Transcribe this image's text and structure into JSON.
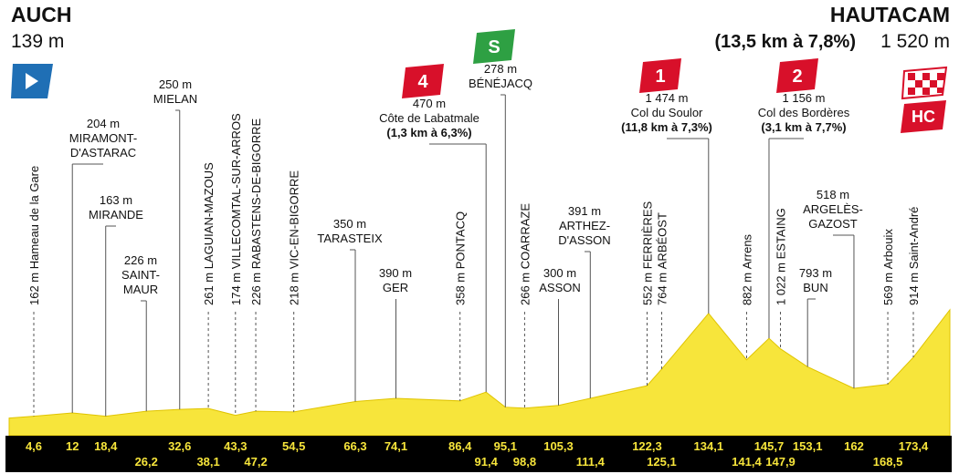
{
  "header": {
    "start": {
      "name": "AUCH",
      "altitude": {
        "value": 139,
        "label": "139 m"
      }
    },
    "finish": {
      "name": "HAUTACAM",
      "climb": "(13,5 km à 7,8%)",
      "altitude": {
        "value": 1520,
        "label": "1 520 m"
      },
      "badge": "HC"
    }
  },
  "waypoints": [
    {
      "orient": "vertical",
      "km": {
        "value": 4.6,
        "label": "4,6"
      },
      "altitude": {
        "value": 162,
        "label": "162 m"
      },
      "name": [
        "Hameau de la Gare"
      ]
    },
    {
      "orient": "horizontal",
      "km": {
        "value": 12,
        "label": "12"
      },
      "altitude": {
        "value": 204,
        "label": "204 m"
      },
      "name": [
        "MIRAMONT-",
        "D'ASTARAC"
      ]
    },
    {
      "orient": "horizontal",
      "km": {
        "value": 18.4,
        "label": "18,4"
      },
      "altitude": {
        "value": 163,
        "label": "163 m"
      },
      "name": [
        "MIRANDE"
      ]
    },
    {
      "orient": "horizontal",
      "km": {
        "value": 26.2,
        "label": "26,2"
      },
      "altitude": {
        "value": 226,
        "label": "226 m"
      },
      "name": [
        "SAINT-",
        "MAUR"
      ]
    },
    {
      "orient": "horizontal",
      "km": {
        "value": 32.6,
        "label": "32,6"
      },
      "altitude": {
        "value": 250,
        "label": "250 m"
      },
      "name": [
        "MIELAN"
      ]
    },
    {
      "orient": "vertical",
      "km": {
        "value": 38.1,
        "label": "38,1"
      },
      "altitude": {
        "value": 261,
        "label": "261 m"
      },
      "name": [
        "LAGUIAN-MAZOUS"
      ]
    },
    {
      "orient": "vertical",
      "km": {
        "value": 43.3,
        "label": "43,3"
      },
      "altitude": {
        "value": 174,
        "label": "174 m"
      },
      "name": [
        "VILLECOMTAL-SUR-ARROS"
      ]
    },
    {
      "orient": "vertical",
      "km": {
        "value": 47.2,
        "label": "47,2"
      },
      "altitude": {
        "value": 226,
        "label": "226 m"
      },
      "name": [
        "RABASTENS-DE-BIGORRE"
      ]
    },
    {
      "orient": "vertical",
      "km": {
        "value": 54.5,
        "label": "54,5"
      },
      "altitude": {
        "value": 218,
        "label": "218 m"
      },
      "name": [
        "VIC-EN-BIGORRE"
      ]
    },
    {
      "orient": "horizontal",
      "km": {
        "value": 66.3,
        "label": "66,3"
      },
      "altitude": {
        "value": 350,
        "label": "350 m"
      },
      "name": [
        "TARASTEIX"
      ]
    },
    {
      "orient": "horizontal",
      "km": {
        "value": 74.1,
        "label": "74,1"
      },
      "altitude": {
        "value": 390,
        "label": "390 m"
      },
      "name": [
        "GER"
      ]
    },
    {
      "orient": "vertical",
      "km": {
        "value": 86.4,
        "label": "86,4"
      },
      "altitude": {
        "value": 358,
        "label": "358 m"
      },
      "name": [
        "PONTACQ"
      ]
    },
    {
      "orient": "horizontal",
      "km": {
        "value": 91.4,
        "label": "91,4"
      },
      "altitude": {
        "value": 470,
        "label": "470 m"
      },
      "name": [
        "Côte de Labatmale"
      ],
      "detail": "(1,3 km à 6,3%)",
      "badge": "4"
    },
    {
      "orient": "horizontal",
      "km": {
        "value": 95.1,
        "label": "95,1"
      },
      "altitude": {
        "value": 278,
        "label": "278 m"
      },
      "name": [
        "BÉNÉJACQ"
      ],
      "badge": "S"
    },
    {
      "orient": "vertical",
      "km": {
        "value": 98.8,
        "label": "98,8"
      },
      "altitude": {
        "value": 266,
        "label": "266 m"
      },
      "name": [
        "COARRAZE"
      ]
    },
    {
      "orient": "horizontal",
      "km": {
        "value": 105.3,
        "label": "105,3"
      },
      "altitude": {
        "value": 300,
        "label": "300 m"
      },
      "name": [
        "ASSON"
      ]
    },
    {
      "orient": "horizontal",
      "km": {
        "value": 111.4,
        "label": "111,4"
      },
      "altitude": {
        "value": 391,
        "label": "391 m"
      },
      "name": [
        "ARTHEZ-",
        "D'ASSON"
      ]
    },
    {
      "orient": "vertical",
      "km": {
        "value": 122.3,
        "label": "122,3"
      },
      "altitude": {
        "value": 552,
        "label": "552 m"
      },
      "name": [
        "FERRIÈRES"
      ]
    },
    {
      "orient": "vertical",
      "km": {
        "value": 125.1,
        "label": "125,1"
      },
      "altitude": {
        "value": 764,
        "label": "764 m"
      },
      "name": [
        "ARBÉOST"
      ]
    },
    {
      "orient": "horizontal",
      "km": {
        "value": 134.1,
        "label": "134,1"
      },
      "altitude": {
        "value": 1474,
        "label": "1 474 m"
      },
      "name": [
        "Col du Soulor"
      ],
      "detail": "(11,8 km à 7,3%)",
      "badge": "1"
    },
    {
      "orient": "vertical",
      "km": {
        "value": 141.4,
        "label": "141,4"
      },
      "altitude": {
        "value": 882,
        "label": "882 m"
      },
      "name": [
        "Arrens"
      ]
    },
    {
      "orient": "horizontal",
      "km": {
        "value": 145.7,
        "label": "145,7"
      },
      "altitude": {
        "value": 1156,
        "label": "1 156 m"
      },
      "name": [
        "Col des Bordères"
      ],
      "detail": "(3,1 km à 7,7%)",
      "badge": "2"
    },
    {
      "orient": "vertical",
      "km": {
        "value": 147.9,
        "label": "147,9"
      },
      "altitude": {
        "value": 1022,
        "label": "1 022 m"
      },
      "name": [
        "ESTAING"
      ]
    },
    {
      "orient": "horizontal",
      "km": {
        "value": 153.1,
        "label": "153,1"
      },
      "altitude": {
        "value": 793,
        "label": "793 m"
      },
      "name": [
        "BUN"
      ]
    },
    {
      "orient": "horizontal",
      "km": {
        "value": 162,
        "label": "162"
      },
      "altitude": {
        "value": 518,
        "label": "518 m"
      },
      "name": [
        "ARGELÈS-",
        "GAZOST"
      ]
    },
    {
      "orient": "vertical",
      "km": {
        "value": 168.5,
        "label": "168,5"
      },
      "altitude": {
        "value": 569,
        "label": "569 m"
      },
      "name": [
        "Arbouix"
      ]
    },
    {
      "orient": "vertical",
      "km": {
        "value": 173.4,
        "label": "173,4"
      },
      "altitude": {
        "value": 914,
        "label": "914 m"
      },
      "name": [
        "Saint-André"
      ]
    }
  ]
}
